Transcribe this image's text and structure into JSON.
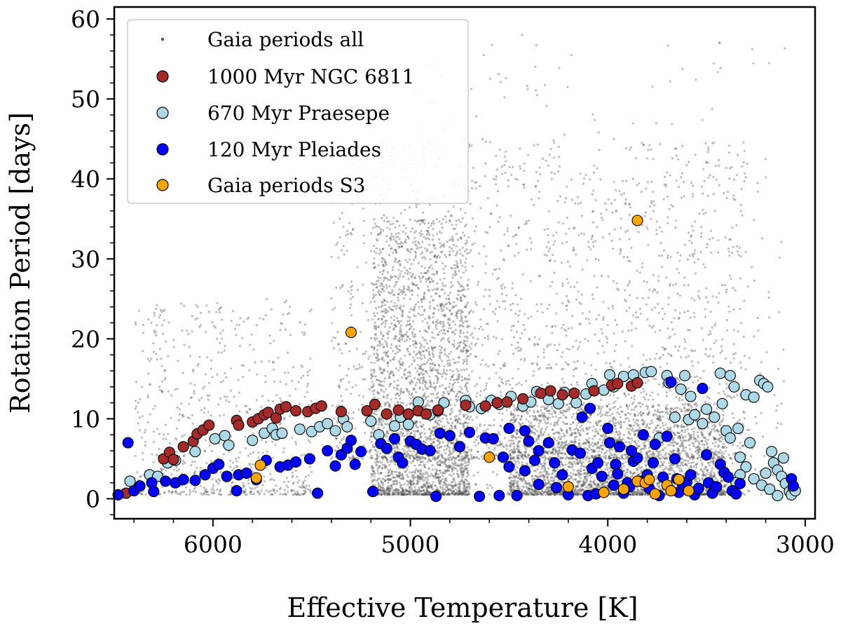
{
  "chart_data": {
    "type": "scatter",
    "xlabel": "Effective Temperature [K]",
    "ylabel": "Rotation Period [days]",
    "xlim": [
      6500,
      2950
    ],
    "ylim": [
      -2.5,
      61.5
    ],
    "xticks": [
      6000,
      5000,
      4000,
      3000
    ],
    "xtick_labels": [
      "6000",
      "5000",
      "4000",
      "3000"
    ],
    "yticks": [
      0,
      10,
      20,
      30,
      40,
      50,
      60
    ],
    "ytick_labels": [
      "0",
      "10",
      "20",
      "30",
      "40",
      "50",
      "60"
    ],
    "grid": false,
    "legend_position": "top-left",
    "background_density": {
      "description": "dense cloud of Gaia periods",
      "regions": [
        {
          "teff_range": [
            5200,
            4700
          ],
          "period_range": [
            0.5,
            35
          ],
          "weight": 0.28
        },
        {
          "teff_range": [
            4500,
            3400
          ],
          "period_range": [
            0.5,
            12
          ],
          "weight": 0.32
        },
        {
          "teff_range": [
            5400,
            3300
          ],
          "period_range": [
            5,
            45
          ],
          "weight": 0.25
        },
        {
          "teff_range": [
            6400,
            5500
          ],
          "period_range": [
            0.5,
            25
          ],
          "weight": 0.08
        },
        {
          "teff_range": [
            5000,
            3100
          ],
          "period_range": [
            0.5,
            58
          ],
          "weight": 0.07
        }
      ]
    },
    "series": [
      {
        "name": "Gaia periods all",
        "color": "#555555",
        "marker": "small-dot",
        "points": "generated-from-background_density"
      },
      {
        "name": "1000 Myr NGC 6811",
        "color": "#a52a2a",
        "points": [
          [
            6440,
            0.7
          ],
          [
            6250,
            5.0
          ],
          [
            6220,
            5.8
          ],
          [
            6200,
            4.9
          ],
          [
            6150,
            6.5
          ],
          [
            6100,
            7.2
          ],
          [
            6080,
            8.1
          ],
          [
            6050,
            8.6
          ],
          [
            6020,
            9.2
          ],
          [
            5880,
            9.8
          ],
          [
            5870,
            9.2
          ],
          [
            5800,
            9.6
          ],
          [
            5770,
            10.0
          ],
          [
            5740,
            10.5
          ],
          [
            5720,
            10.8
          ],
          [
            5680,
            10.1
          ],
          [
            5660,
            11.2
          ],
          [
            5630,
            11.5
          ],
          [
            5580,
            11.0
          ],
          [
            5520,
            10.9
          ],
          [
            5480,
            11.3
          ],
          [
            5450,
            11.6
          ],
          [
            5350,
            10.9
          ],
          [
            5220,
            11.0
          ],
          [
            5180,
            11.8
          ],
          [
            5120,
            10.6
          ],
          [
            5060,
            11.1
          ],
          [
            5010,
            10.6
          ],
          [
            4960,
            11.0
          ],
          [
            4920,
            10.6
          ],
          [
            4860,
            11.1
          ],
          [
            4720,
            11.7
          ],
          [
            4620,
            11.6
          ],
          [
            4560,
            12.0
          ],
          [
            4510,
            12.1
          ],
          [
            4430,
            12.5
          ],
          [
            4340,
            13.2
          ],
          [
            4290,
            13.5
          ],
          [
            4230,
            13.0
          ],
          [
            4170,
            13.2
          ],
          [
            4070,
            13.5
          ],
          [
            3980,
            14.2
          ],
          [
            3950,
            14.4
          ],
          [
            3880,
            14.1
          ],
          [
            3850,
            14.5
          ]
        ]
      },
      {
        "name": "670 Myr Praesepe",
        "color": "#add8e6",
        "points": [
          [
            6420,
            2.2
          ],
          [
            6320,
            3.0
          ],
          [
            6280,
            2.8
          ],
          [
            6230,
            4.5
          ],
          [
            6190,
            4.8
          ],
          [
            6090,
            5.9
          ],
          [
            5990,
            7.5
          ],
          [
            5940,
            7.9
          ],
          [
            5920,
            6.7
          ],
          [
            5800,
            7.3
          ],
          [
            5740,
            8.2
          ],
          [
            5700,
            8.8
          ],
          [
            5680,
            8.0
          ],
          [
            5650,
            8.2
          ],
          [
            5560,
            8.7
          ],
          [
            5500,
            8.4
          ],
          [
            5460,
            9.0
          ],
          [
            5420,
            9.4
          ],
          [
            5380,
            8.5
          ],
          [
            5340,
            10.0
          ],
          [
            5320,
            9.0
          ],
          [
            5200,
            9.7
          ],
          [
            5160,
            8.0
          ],
          [
            5080,
            9.1
          ],
          [
            5050,
            10.2
          ],
          [
            5010,
            9.3
          ],
          [
            4960,
            12.1
          ],
          [
            4900,
            10.5
          ],
          [
            4860,
            11.0
          ],
          [
            4830,
            12.0
          ],
          [
            4720,
            12.3
          ],
          [
            4700,
            11.5
          ],
          [
            4640,
            11.3
          ],
          [
            4590,
            12.3
          ],
          [
            4550,
            11.8
          ],
          [
            4490,
            12.8
          ],
          [
            4430,
            11.6
          ],
          [
            4390,
            12.1
          ],
          [
            4360,
            13.4
          ],
          [
            4300,
            12.4
          ],
          [
            4250,
            11.9
          ],
          [
            4220,
            13.3
          ],
          [
            4160,
            12.0
          ],
          [
            4110,
            13.1
          ],
          [
            4080,
            14.4
          ],
          [
            4020,
            13.6
          ],
          [
            3990,
            15.5
          ],
          [
            3970,
            14.0
          ],
          [
            3920,
            15.3
          ],
          [
            3870,
            15.5
          ],
          [
            3810,
            15.8
          ],
          [
            3780,
            15.9
          ],
          [
            3740,
            7.6
          ],
          [
            3700,
            15.4
          ],
          [
            3690,
            14.5
          ],
          [
            3660,
            10.2
          ],
          [
            3630,
            13.7
          ],
          [
            3610,
            15.4
          ],
          [
            3590,
            9.9
          ],
          [
            3580,
            12.8
          ],
          [
            3560,
            10.5
          ],
          [
            3520,
            9.4
          ],
          [
            3500,
            11.2
          ],
          [
            3460,
            10.2
          ],
          [
            3430,
            15.7
          ],
          [
            3420,
            11.9
          ],
          [
            3400,
            8.5
          ],
          [
            3380,
            7.6
          ],
          [
            3380,
            15.4
          ],
          [
            3360,
            14.0
          ],
          [
            3340,
            8.8
          ],
          [
            3330,
            5.2
          ],
          [
            3300,
            13.0
          ],
          [
            3280,
            7.0
          ],
          [
            3260,
            12.7
          ],
          [
            3230,
            14.8
          ],
          [
            3210,
            14.4
          ],
          [
            3190,
            14.0
          ],
          [
            3170,
            5.9
          ],
          [
            3160,
            4.5
          ],
          [
            3140,
            3.6
          ],
          [
            3120,
            2.8
          ],
          [
            3110,
            5.1
          ],
          [
            3100,
            1.9
          ],
          [
            3080,
            0.9
          ],
          [
            3070,
            0.5
          ],
          [
            3060,
            1.4
          ],
          [
            3050,
            1.0
          ],
          [
            3300,
            4.0
          ],
          [
            3260,
            2.5
          ],
          [
            3220,
            1.7
          ],
          [
            3200,
            3.2
          ],
          [
            3180,
            1.2
          ],
          [
            3140,
            0.4
          ],
          [
            3330,
            3.0
          ],
          [
            3350,
            2.0
          ]
        ]
      },
      {
        "name": "120 Myr Pleiades",
        "color": "#0000ff",
        "points": [
          [
            6430,
            7.0
          ],
          [
            6480,
            0.5
          ],
          [
            6400,
            1.0
          ],
          [
            6370,
            1.6
          ],
          [
            6310,
            2.0
          ],
          [
            6300,
            0.9
          ],
          [
            6240,
            2.2
          ],
          [
            6190,
            2.0
          ],
          [
            6150,
            2.4
          ],
          [
            6090,
            2.3
          ],
          [
            6040,
            3.0
          ],
          [
            6000,
            3.8
          ],
          [
            5970,
            4.3
          ],
          [
            5930,
            2.8
          ],
          [
            5880,
            1.0
          ],
          [
            5870,
            3.0
          ],
          [
            5830,
            3.2
          ],
          [
            5780,
            2.4
          ],
          [
            5730,
            4.8
          ],
          [
            5660,
            4.0
          ],
          [
            5620,
            4.2
          ],
          [
            5580,
            4.6
          ],
          [
            5510,
            5.0
          ],
          [
            5470,
            0.7
          ],
          [
            5420,
            6.0
          ],
          [
            5380,
            4.1
          ],
          [
            5350,
            5.5
          ],
          [
            5320,
            6.3
          ],
          [
            5300,
            7.3
          ],
          [
            5280,
            4.3
          ],
          [
            5250,
            5.9
          ],
          [
            5190,
            0.9
          ],
          [
            5150,
            6.9
          ],
          [
            5120,
            6.3
          ],
          [
            5080,
            7.5
          ],
          [
            5060,
            5.2
          ],
          [
            5040,
            4.5
          ],
          [
            5000,
            7.2
          ],
          [
            4970,
            6.8
          ],
          [
            4940,
            6.2
          ],
          [
            4900,
            6.0
          ],
          [
            4870,
            0.3
          ],
          [
            4850,
            8.2
          ],
          [
            4800,
            7.9
          ],
          [
            4750,
            6.5
          ],
          [
            4700,
            8.3
          ],
          [
            4650,
            0.3
          ],
          [
            4620,
            7.6
          ],
          [
            4580,
            7.5
          ],
          [
            4550,
            0.4
          ],
          [
            4530,
            5.2
          ],
          [
            4500,
            8.8
          ],
          [
            4460,
            0.4
          ],
          [
            4420,
            8.5
          ],
          [
            4400,
            7.2
          ],
          [
            4370,
            4.8
          ],
          [
            4350,
            6.0
          ],
          [
            4300,
            7.0
          ],
          [
            4270,
            4.5
          ],
          [
            4230,
            3.0
          ],
          [
            4200,
            0.5
          ],
          [
            4180,
            6.1
          ],
          [
            4140,
            5.7
          ],
          [
            4130,
            10.2
          ],
          [
            4100,
            0.4
          ],
          [
            4090,
            11.3
          ],
          [
            4080,
            3.8
          ],
          [
            4050,
            4.5
          ],
          [
            4030,
            2.8
          ],
          [
            4000,
            8.8
          ],
          [
            3990,
            7.0
          ],
          [
            3970,
            1.7
          ],
          [
            3960,
            4.3
          ],
          [
            3940,
            6.5
          ],
          [
            3920,
            0.7
          ],
          [
            3900,
            2.0
          ],
          [
            3890,
            1.5
          ],
          [
            3870,
            4.7
          ],
          [
            3850,
            5.1
          ],
          [
            3830,
            2.2
          ],
          [
            3820,
            8.0
          ],
          [
            3800,
            3.0
          ],
          [
            3790,
            1.3
          ],
          [
            3770,
            4.5
          ],
          [
            3740,
            0.4
          ],
          [
            3720,
            2.7
          ],
          [
            3700,
            7.8
          ],
          [
            3680,
            14.6
          ],
          [
            3660,
            5.0
          ],
          [
            3640,
            0.8
          ],
          [
            3620,
            1.8
          ],
          [
            3600,
            2.1
          ],
          [
            3580,
            3.0
          ],
          [
            3560,
            0.5
          ],
          [
            3540,
            1.3
          ],
          [
            3520,
            13.8
          ],
          [
            3500,
            5.5
          ],
          [
            3490,
            2.0
          ],
          [
            3470,
            0.7
          ],
          [
            3450,
            1.5
          ],
          [
            3430,
            4.3
          ],
          [
            3410,
            3.3
          ],
          [
            3390,
            2.7
          ],
          [
            3370,
            1.0
          ],
          [
            3350,
            0.6
          ],
          [
            3330,
            1.9
          ],
          [
            3070,
            2.5
          ],
          [
            3060,
            1.6
          ],
          [
            4500,
            4.0
          ],
          [
            4350,
            1.8
          ],
          [
            4420,
            3.5
          ],
          [
            4260,
            1.4
          ],
          [
            4060,
            0.6
          ],
          [
            3950,
            3.1
          ],
          [
            3880,
            6.0
          ],
          [
            3760,
            6.8
          ],
          [
            3650,
            2.5
          ]
        ]
      },
      {
        "name": "Gaia periods S3",
        "color": "#ffa500",
        "points": [
          [
            3850,
            34.8
          ],
          [
            5300,
            20.8
          ],
          [
            5760,
            4.2
          ],
          [
            5780,
            2.6
          ],
          [
            4600,
            5.2
          ],
          [
            4200,
            1.5
          ],
          [
            4020,
            0.8
          ],
          [
            3920,
            1.2
          ],
          [
            3850,
            2.2
          ],
          [
            3810,
            2.0
          ],
          [
            3790,
            2.4
          ],
          [
            3760,
            0.6
          ],
          [
            3700,
            1.7
          ],
          [
            3680,
            1.0
          ],
          [
            3640,
            2.4
          ],
          [
            3590,
            1.0
          ]
        ]
      }
    ]
  }
}
